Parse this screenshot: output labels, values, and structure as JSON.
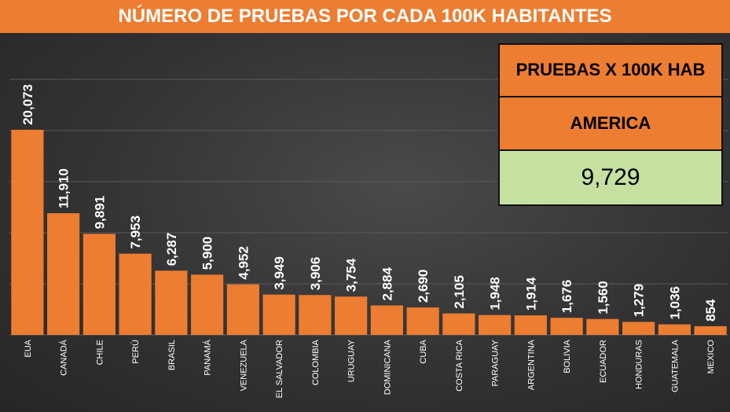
{
  "chart_data": {
    "type": "bar",
    "title": "NÚMERO DE PRUEBAS POR CADA 100K HABITANTES",
    "categories": [
      "EUA",
      "CANADÁ",
      "CHILE",
      "PERÚ",
      "BRASIL",
      "PANAMÁ",
      "VENEZUELA",
      "EL SALVADOR",
      "COLOMBIA",
      "URUGUAY",
      "DOMINICANA",
      "CUBA",
      "COSTA RICA",
      "PARAGUAY",
      "ARGENTINA",
      "BOLIVIA",
      "ECUADOR",
      "HONDURAS",
      "GUATEMALA",
      "MEXICO"
    ],
    "values": [
      20073,
      11910,
      9891,
      7953,
      6287,
      5900,
      4952,
      3949,
      3906,
      3754,
      2884,
      2690,
      2105,
      1948,
      1914,
      1676,
      1560,
      1279,
      1036,
      854
    ],
    "value_labels": [
      "20,073",
      "11,910",
      "9,891",
      "7,953",
      "6,287",
      "5,900",
      "4,952",
      "3,949",
      "3,906",
      "3,754",
      "2,884",
      "2,690",
      "2,105",
      "1,948",
      "1,914",
      "1,676",
      "1,560",
      "1,279",
      "1,036",
      "854"
    ],
    "color": "#ed7d31",
    "ylim": [
      0,
      25000
    ],
    "yticks": [
      0,
      5000,
      10000,
      15000,
      20000,
      25000
    ],
    "grid": true
  },
  "summary": {
    "header": "PRUEBAS X 100K HAB",
    "region": "AMERICA",
    "value": "9,729"
  }
}
